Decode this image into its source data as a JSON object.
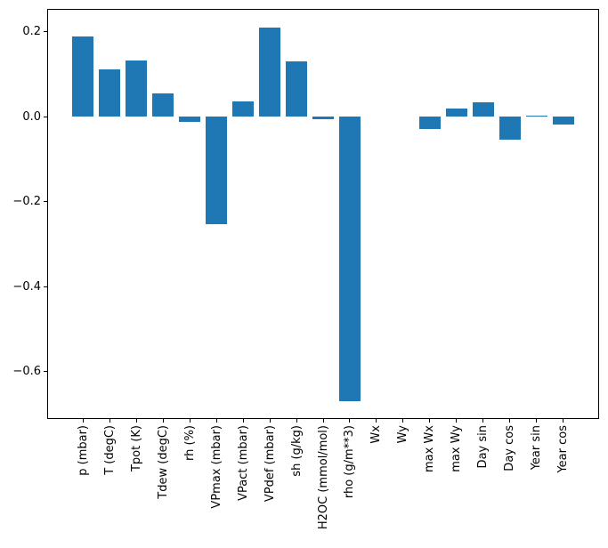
{
  "figure": {
    "background_color": "#ffffff",
    "axis_color": "#000000",
    "text_color": "#000000"
  },
  "chart_data": {
    "type": "bar",
    "title": "",
    "xlabel": "",
    "ylabel": "",
    "categories": [
      "p (mbar)",
      "T (degC)",
      "Tpot (K)",
      "Tdew (degC)",
      "rh (%)",
      "VPmax (mbar)",
      "VPact (mbar)",
      "VPdef (mbar)",
      "sh (g/kg)",
      "H2OC (mmol/mol)",
      "rho (g/m**3)",
      "Wx",
      "Wy",
      "max Wx",
      "max Wy",
      "Day sin",
      "Day cos",
      "Year sin",
      "Year cos"
    ],
    "values": [
      0.19,
      0.112,
      0.132,
      0.056,
      -0.011,
      -0.253,
      0.037,
      0.21,
      0.131,
      -0.006,
      -0.669,
      0.0,
      0.0,
      -0.028,
      0.02,
      0.034,
      -0.053,
      0.003,
      -0.019
    ],
    "bar_color": "#1f77b4",
    "bar_width": 0.8,
    "ylim": [
      -0.711,
      0.254
    ],
    "xlim": [
      -1.34,
      19.34
    ],
    "yticks": [
      0.2,
      0.0,
      -0.2,
      -0.4,
      -0.6
    ],
    "ytick_labels": [
      "0.2",
      "0.0",
      "−0.2",
      "−0.4",
      "−0.6"
    ],
    "grid": false,
    "legend": null,
    "xtick_rotation_deg": 90
  }
}
